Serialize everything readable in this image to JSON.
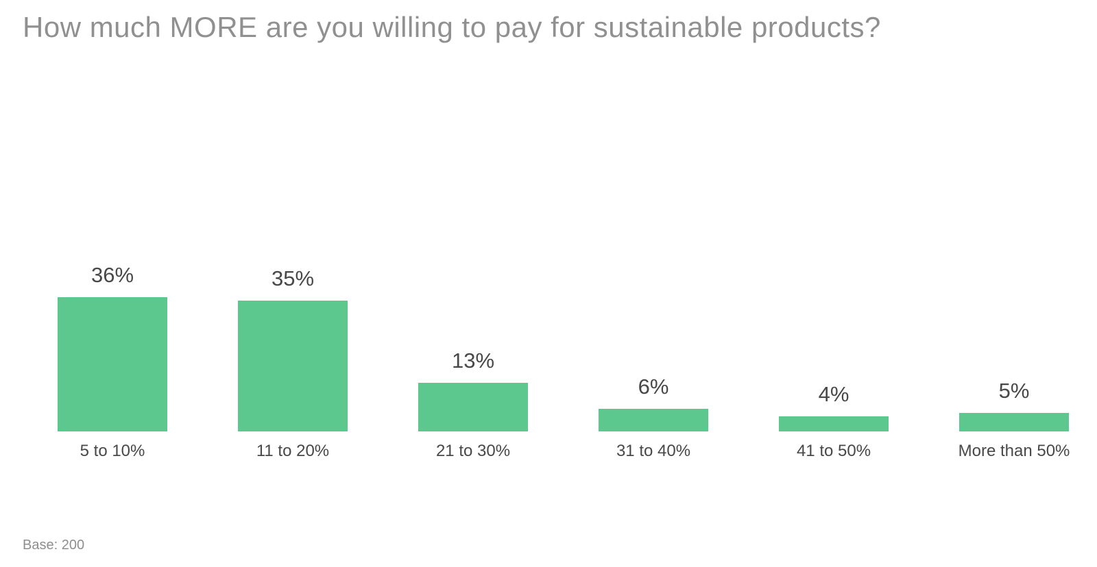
{
  "title": "How much MORE are you willing to pay for sustainable products?",
  "footnote": "Base: 200",
  "colors": {
    "bar": "#5dc88d",
    "title_text": "#909090",
    "label_text": "#484848",
    "footnote_text": "#8e8e8e",
    "background": "#ffffff"
  },
  "chart_data": {
    "type": "bar",
    "title": "How much MORE are you willing to pay for sustainable products?",
    "categories": [
      "5 to 10%",
      "11 to 20%",
      "21 to 30%",
      "31 to 40%",
      "41 to 50%",
      "More than 50%"
    ],
    "values": [
      36,
      35,
      13,
      6,
      4,
      5
    ],
    "value_labels": [
      "36%",
      "35%",
      "13%",
      "6%",
      "4%",
      "5%"
    ],
    "xlabel": "",
    "ylabel": "",
    "ylim": [
      0,
      36
    ],
    "grid": false,
    "axes_visible": false,
    "legend": "none",
    "data_labels_position": "above-bars",
    "footnote": "Base: 200"
  }
}
